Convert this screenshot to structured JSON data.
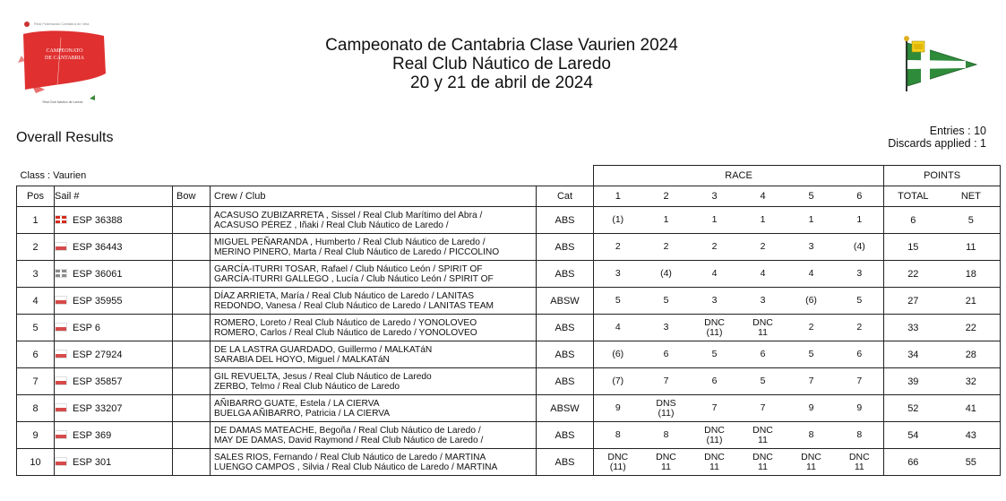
{
  "header": {
    "title_line1": "Campeonato de Cantabria Clase Vaurien 2024",
    "title_line2": "Real Club Náutico de Laredo",
    "title_line3": "20 y 21 de abril de 2024"
  },
  "summary": {
    "overall_results": "Overall Results",
    "entries": "Entries : 10",
    "discards": "Discards applied : 1"
  },
  "class_label": "Class : Vaurien",
  "group_headers": {
    "race": "RACE",
    "points": "POINTS"
  },
  "columns": {
    "pos": "Pos",
    "sail": "Sail #",
    "bow": "Bow",
    "crew": "Crew / Club",
    "cat": "Cat",
    "r1": "1",
    "r2": "2",
    "r3": "3",
    "r4": "4",
    "r5": "5",
    "r6": "6",
    "total": "TOTAL",
    "net": "NET"
  },
  "rows": [
    {
      "pos": "1",
      "flag": "basque",
      "sail": "ESP 36388",
      "bow": "",
      "crew1": "ACASUSO ZUBIZARRETA , Sissel / Real Club Marítimo del Abra /",
      "crew2": "ACASUSO PÉREZ , Iñaki / Real Club Náutico de Laredo /",
      "cat": "ABS",
      "r": [
        [
          "(1)",
          ""
        ],
        [
          "1",
          ""
        ],
        [
          "1",
          ""
        ],
        [
          "1",
          ""
        ],
        [
          "1",
          ""
        ],
        [
          "1",
          ""
        ]
      ],
      "total": "6",
      "net": "5"
    },
    {
      "pos": "2",
      "flag": "cant",
      "sail": "ESP 36443",
      "bow": "",
      "crew1": "MIGUEL PEÑARANDA , Humberto / Real Club Náutico de Laredo /",
      "crew2": "MERINO PINERO, Marta / Real Club Náutico de Laredo / PICCOLINO",
      "cat": "ABS",
      "r": [
        [
          "2",
          ""
        ],
        [
          "2",
          ""
        ],
        [
          "2",
          ""
        ],
        [
          "2",
          ""
        ],
        [
          "3",
          ""
        ],
        [
          "(4)",
          ""
        ]
      ],
      "total": "15",
      "net": "11"
    },
    {
      "pos": "3",
      "flag": "basque-g",
      "sail": "ESP 36061",
      "bow": "",
      "crew1": "GARCÍA-ITURRI TOSAR, Rafael / Club Náutico León / SPIRIT OF",
      "crew2": "GARCÍA-ITURRI GALLEGO , Lucía / Club Náutico León / SPIRIT OF",
      "cat": "ABS",
      "r": [
        [
          "3",
          ""
        ],
        [
          "(4)",
          ""
        ],
        [
          "4",
          ""
        ],
        [
          "4",
          ""
        ],
        [
          "4",
          ""
        ],
        [
          "3",
          ""
        ]
      ],
      "total": "22",
      "net": "18"
    },
    {
      "pos": "4",
      "flag": "cant",
      "sail": "ESP 35955",
      "bow": "",
      "crew1": "DÍAZ ARRIETA, María / Real Club Náutico de Laredo / LANITAS",
      "crew2": "REDONDO, Vanesa / Real Club Náutico de Laredo / LANITAS TEAM",
      "cat": "ABSW",
      "r": [
        [
          "5",
          ""
        ],
        [
          "5",
          ""
        ],
        [
          "3",
          ""
        ],
        [
          "3",
          ""
        ],
        [
          "(6)",
          ""
        ],
        [
          "5",
          ""
        ]
      ],
      "total": "27",
      "net": "21"
    },
    {
      "pos": "5",
      "flag": "cant",
      "sail": "ESP 6",
      "bow": "",
      "crew1": "ROMERO, Loreto / Real Club Náutico de Laredo / YONOLOVEO",
      "crew2": "ROMERO, Carlos / Real Club Náutico de Laredo / YONOLOVEO",
      "cat": "ABS",
      "r": [
        [
          "4",
          ""
        ],
        [
          "3",
          ""
        ],
        [
          "DNC",
          "(11)"
        ],
        [
          "DNC",
          "11"
        ],
        [
          "2",
          ""
        ],
        [
          "2",
          ""
        ]
      ],
      "total": "33",
      "net": "22"
    },
    {
      "pos": "6",
      "flag": "cant",
      "sail": "ESP 27924",
      "bow": "",
      "crew1": "DE LA LASTRA GUARDADO, Guillermo / MALKATáN",
      "crew2": "SARABIA DEL HOYO, Miguel / MALKATáN",
      "cat": "ABS",
      "r": [
        [
          "(6)",
          ""
        ],
        [
          "6",
          ""
        ],
        [
          "5",
          ""
        ],
        [
          "6",
          ""
        ],
        [
          "5",
          ""
        ],
        [
          "6",
          ""
        ]
      ],
      "total": "34",
      "net": "28"
    },
    {
      "pos": "7",
      "flag": "cant",
      "sail": "ESP 35857",
      "bow": "",
      "crew1": "GIL REVUELTA, Jesus / Real Club Náutico de Laredo",
      "crew2": "ZERBO, Telmo / Real Club Náutico de Laredo",
      "cat": "ABS",
      "r": [
        [
          "(7)",
          ""
        ],
        [
          "7",
          ""
        ],
        [
          "6",
          ""
        ],
        [
          "5",
          ""
        ],
        [
          "7",
          ""
        ],
        [
          "7",
          ""
        ]
      ],
      "total": "39",
      "net": "32"
    },
    {
      "pos": "8",
      "flag": "cant",
      "sail": "ESP 33207",
      "bow": "",
      "crew1": "AÑIBARRO GUATE, Estela / LA CIERVA",
      "crew2": "BUELGA AÑIBARRO, Patricia / LA CIERVA",
      "cat": "ABSW",
      "r": [
        [
          "9",
          ""
        ],
        [
          "DNS",
          "(11)"
        ],
        [
          "7",
          ""
        ],
        [
          "7",
          ""
        ],
        [
          "9",
          ""
        ],
        [
          "9",
          ""
        ]
      ],
      "total": "52",
      "net": "41"
    },
    {
      "pos": "9",
      "flag": "cant",
      "sail": "ESP 369",
      "bow": "",
      "crew1": "DE DAMAS MATEACHE, Begoña / Real Club Náutico de Laredo /",
      "crew2": "MAY DE DAMAS, David Raymond / Real Club Náutico de Laredo /",
      "cat": "ABS",
      "r": [
        [
          "8",
          ""
        ],
        [
          "8",
          ""
        ],
        [
          "DNC",
          "(11)"
        ],
        [
          "DNC",
          "11"
        ],
        [
          "8",
          ""
        ],
        [
          "8",
          ""
        ]
      ],
      "total": "54",
      "net": "43"
    },
    {
      "pos": "10",
      "flag": "cant",
      "sail": "ESP 301",
      "bow": "",
      "crew1": "SALES RIOS, Fernando / Real Club Náutico de Laredo / MARTINA",
      "crew2": "LUENGO CAMPOS , Silvia / Real Club Náutico de Laredo / MARTINA",
      "cat": "ABS",
      "r": [
        [
          "DNC",
          "(11)"
        ],
        [
          "DNC",
          "11"
        ],
        [
          "DNC",
          "11"
        ],
        [
          "DNC",
          "11"
        ],
        [
          "DNC",
          "11"
        ],
        [
          "DNC",
          "11"
        ]
      ],
      "total": "66",
      "net": "55"
    }
  ],
  "logo": {
    "text1": "CAMPEONATO",
    "text2": "DE CANTABRIA",
    "brand_color": "#e03030"
  },
  "club_flag": {
    "field_color": "#2e8b3a",
    "cross_color": "#ffffff"
  }
}
